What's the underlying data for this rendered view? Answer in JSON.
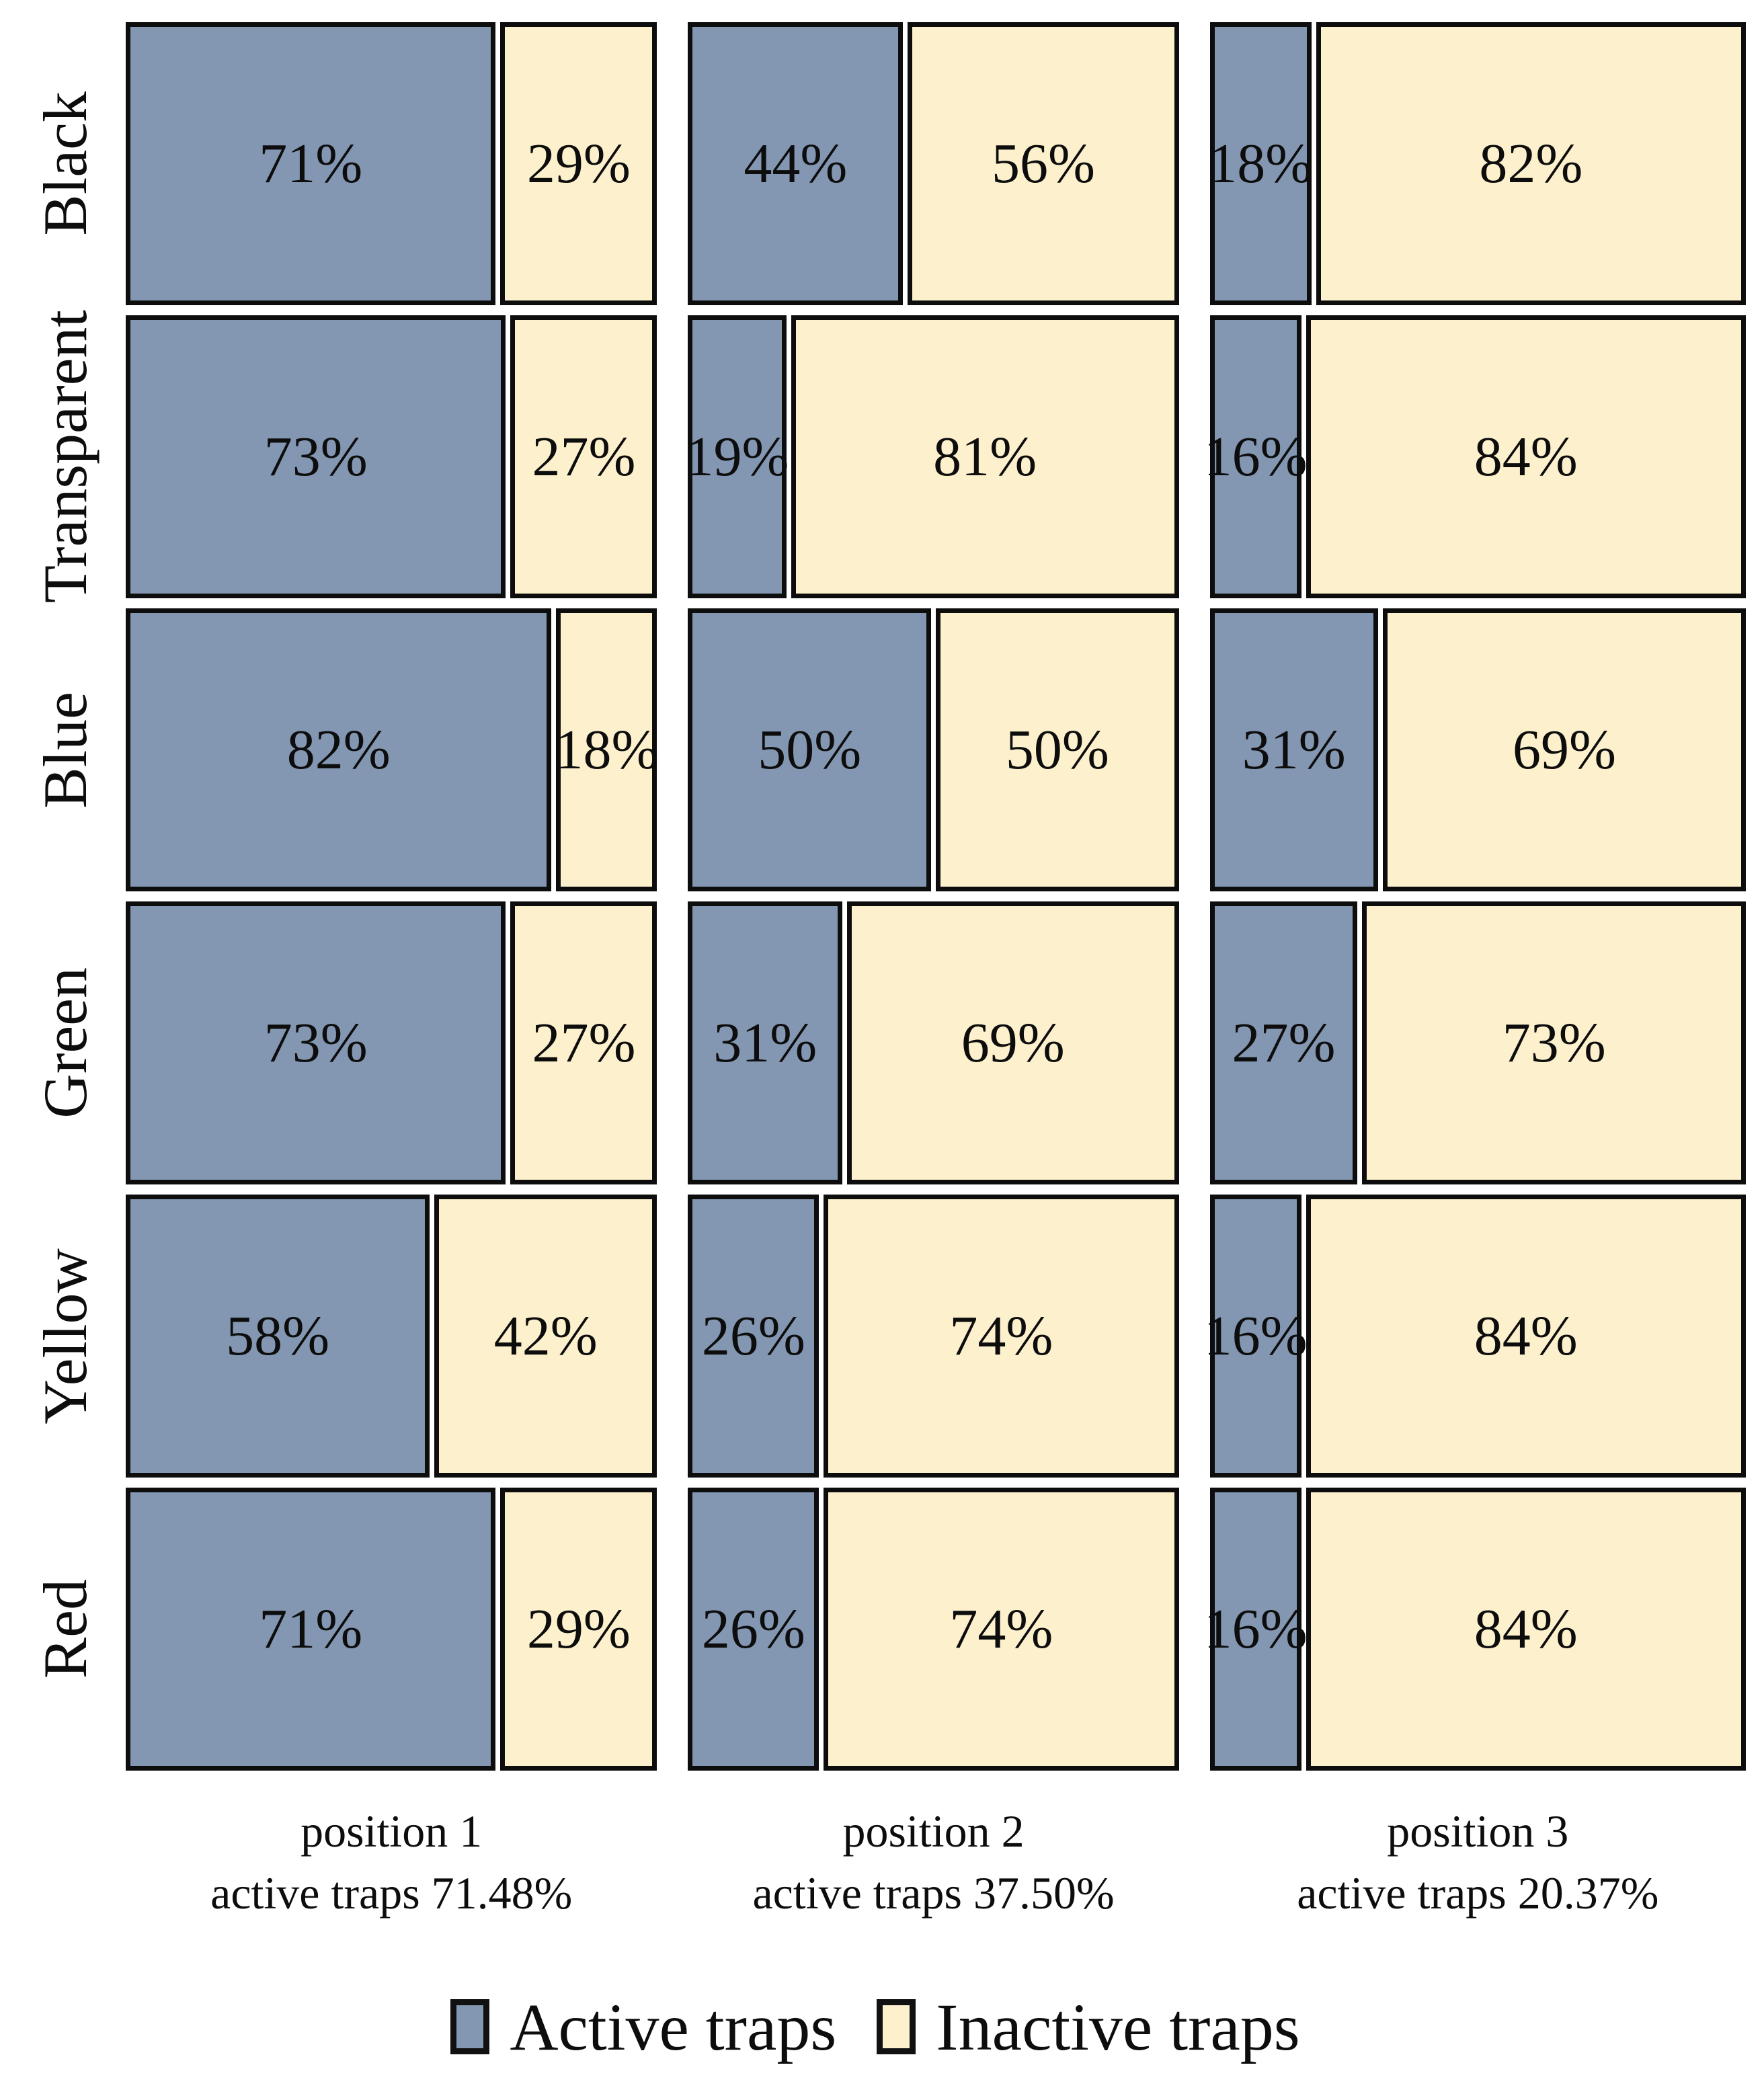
{
  "colors": {
    "active": "#8397b2",
    "inactive": "#fdf0cc",
    "border": "#0d0d0d",
    "background": "#ffffff"
  },
  "chart_data": {
    "type": "mosaic",
    "description": "Mosaic plot of trap status (active vs inactive, % of traps) by trap color (rows) and trap position (columns)",
    "legend_position": "bottom",
    "legend": [
      {
        "label": "Active traps",
        "color": "#8397b2"
      },
      {
        "label": "Inactive traps",
        "color": "#fdf0cc"
      }
    ],
    "columns": [
      {
        "label": "position 1",
        "sublabel": "active traps 71.48%",
        "active_total_pct": 71.48,
        "width_frac": 0.341
      },
      {
        "label": "position 2",
        "sublabel": "active traps 37.50%",
        "active_total_pct": 37.5,
        "width_frac": 0.315
      },
      {
        "label": "position 3",
        "sublabel": "active traps 20.37%",
        "active_total_pct": 20.37,
        "width_frac": 0.344
      }
    ],
    "series_names": [
      "Active traps",
      "Inactive traps"
    ],
    "rows": [
      {
        "label": "Black",
        "values": [
          [
            71,
            29
          ],
          [
            44,
            56
          ],
          [
            18,
            82
          ]
        ]
      },
      {
        "label": "Transparent",
        "values": [
          [
            73,
            27
          ],
          [
            19,
            81
          ],
          [
            16,
            84
          ]
        ]
      },
      {
        "label": "Blue",
        "values": [
          [
            82,
            18
          ],
          [
            50,
            50
          ],
          [
            31,
            69
          ]
        ]
      },
      {
        "label": "Green",
        "values": [
          [
            73,
            27
          ],
          [
            31,
            69
          ],
          [
            27,
            73
          ]
        ]
      },
      {
        "label": "Yellow",
        "values": [
          [
            58,
            42
          ],
          [
            26,
            74
          ],
          [
            16,
            84
          ]
        ]
      },
      {
        "label": "Red",
        "values": [
          [
            71,
            29
          ],
          [
            26,
            74
          ],
          [
            16,
            84
          ]
        ]
      }
    ],
    "value_unit": "%"
  }
}
